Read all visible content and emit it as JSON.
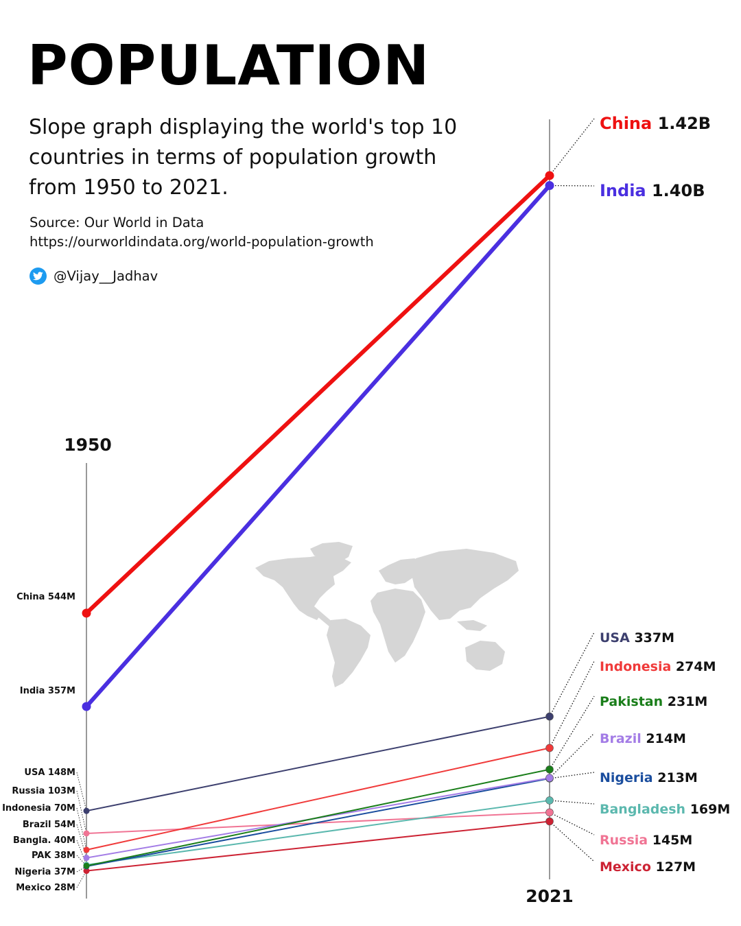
{
  "header": {
    "title": "POPULATION",
    "subtitle": "Slope graph displaying the world's top 10 countries in terms of population growth from 1950 to 2021.",
    "source_line": "Source: Our World in Data",
    "source_url": "https://ourworldindata.org/world-population-growth",
    "twitter_handle": "@Vijay__Jadhav"
  },
  "icons": {
    "twitter": "twitter-bird-icon",
    "map": "world-map-icon"
  },
  "colors": {
    "twitter_blue": "#1d9bf0",
    "axis": "#333333",
    "map": "#d6d6d6"
  },
  "chart_data": {
    "type": "line",
    "x": [
      "1950",
      "2021"
    ],
    "unit": "people",
    "series": [
      {
        "name": "China",
        "color": "#ee1111",
        "values": [
          544000000,
          1420000000
        ],
        "label_1950": "China 544M",
        "label_2021_value": "1.42B"
      },
      {
        "name": "India",
        "color": "#4a2fe0",
        "values": [
          357000000,
          1400000000
        ],
        "label_1950": "India 357M",
        "label_2021_value": "1.40B"
      },
      {
        "name": "USA",
        "color": "#3c3f6e",
        "values": [
          148000000,
          337000000
        ],
        "label_1950": "USA 148M",
        "label_2021_value": "337M"
      },
      {
        "name": "Indonesia",
        "color": "#f03a3a",
        "values": [
          70000000,
          274000000
        ],
        "label_1950": "Indonesia 70M",
        "label_2021_value": "274M"
      },
      {
        "name": "Pakistan",
        "color": "#1a7e1a",
        "values": [
          38000000,
          231000000
        ],
        "label_1950": "PAK 38M",
        "label_2021_value": "231M"
      },
      {
        "name": "Brazil",
        "color": "#a37ce6",
        "values": [
          54000000,
          214000000
        ],
        "label_1950": "Brazil 54M",
        "label_2021_value": "214M"
      },
      {
        "name": "Nigeria",
        "color": "#1a4d9e",
        "values": [
          37000000,
          213000000
        ],
        "label_1950": "Nigeria 37M",
        "label_2021_value": "213M"
      },
      {
        "name": "Bangladesh",
        "color": "#5bb8ae",
        "values": [
          40000000,
          169000000
        ],
        "label_1950": "Bangla. 40M",
        "label_2021_value": "169M"
      },
      {
        "name": "Russia",
        "color": "#f07494",
        "values": [
          103000000,
          145000000
        ],
        "label_1950": "Russia 103M",
        "label_2021_value": "145M"
      },
      {
        "name": "Mexico",
        "color": "#cc2233",
        "values": [
          28000000,
          127000000
        ],
        "label_1950": "Mexico 28M",
        "label_2021_value": "127M"
      }
    ]
  }
}
